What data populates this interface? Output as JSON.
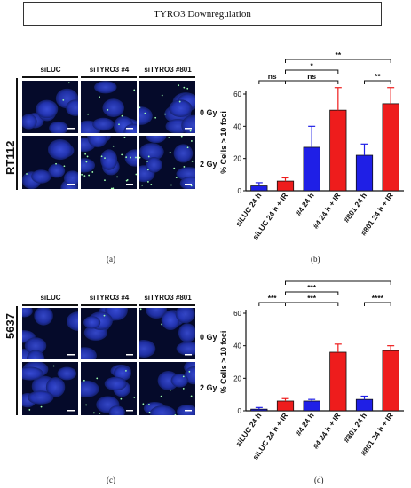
{
  "title": "TYRO3 Downregulation",
  "top": {
    "cell_line": "RT112",
    "columns": [
      "siLUC",
      "siTYRO3 #4",
      "siTYRO3 #801"
    ],
    "doses": [
      "0 Gy",
      "2 Gy"
    ],
    "caption_a": "(a)",
    "caption_b": "(b)"
  },
  "bottom": {
    "cell_line": "5637",
    "columns": [
      "siLUC",
      "siTYRO3 #4",
      "siTYRO3 #801"
    ],
    "doses": [
      "0 Gy",
      "2 Gy"
    ],
    "caption_c": "(c)",
    "caption_d": "(d)"
  },
  "colors": {
    "blue": "#1f1fe6",
    "red": "#ee1c1c",
    "title_border": "#333333"
  },
  "chart_data": [
    {
      "type": "bar",
      "ylabel": "% Cells > 10 foci",
      "ylim": [
        0,
        60
      ],
      "yticks": [
        0,
        20,
        40,
        60
      ],
      "categories": [
        "siLUC 24 h",
        "siLUC 24 h + IR",
        "#4 24 h",
        "#4 24 h + IR",
        "#801 24 h",
        "#801 24 h + IR"
      ],
      "values": [
        3,
        6,
        27,
        50,
        22,
        54
      ],
      "errors": [
        2,
        2,
        13,
        14,
        7,
        10
      ],
      "bar_colors": [
        "blue",
        "red",
        "blue",
        "red",
        "blue",
        "red"
      ],
      "significance": [
        {
          "from": 0,
          "to": 1,
          "label": "ns"
        },
        {
          "from": 1,
          "to": 3,
          "label": "ns"
        },
        {
          "from": 1,
          "to": 3,
          "label": "*"
        },
        {
          "from": 1,
          "to": 5,
          "label": "**"
        },
        {
          "from": 4,
          "to": 5,
          "label": "**"
        }
      ]
    },
    {
      "type": "bar",
      "ylabel": "% Cells > 10 foci",
      "ylim": [
        0,
        60
      ],
      "yticks": [
        0,
        20,
        40,
        60
      ],
      "categories": [
        "siLUC 24 h",
        "siLUC 24 h + IR",
        "#4 24 h",
        "#4 24 h + IR",
        "#801 24 h",
        "#801 24 h + IR"
      ],
      "values": [
        1,
        6,
        6,
        36,
        7,
        37
      ],
      "errors": [
        1,
        1.5,
        1,
        5,
        2,
        3
      ],
      "bar_colors": [
        "blue",
        "red",
        "blue",
        "red",
        "blue",
        "red"
      ],
      "significance": [
        {
          "from": 0,
          "to": 1,
          "label": "***"
        },
        {
          "from": 1,
          "to": 3,
          "label": "***"
        },
        {
          "from": 1,
          "to": 3,
          "label": "***"
        },
        {
          "from": 1,
          "to": 5,
          "label": "****"
        },
        {
          "from": 4,
          "to": 5,
          "label": "****"
        }
      ]
    }
  ]
}
